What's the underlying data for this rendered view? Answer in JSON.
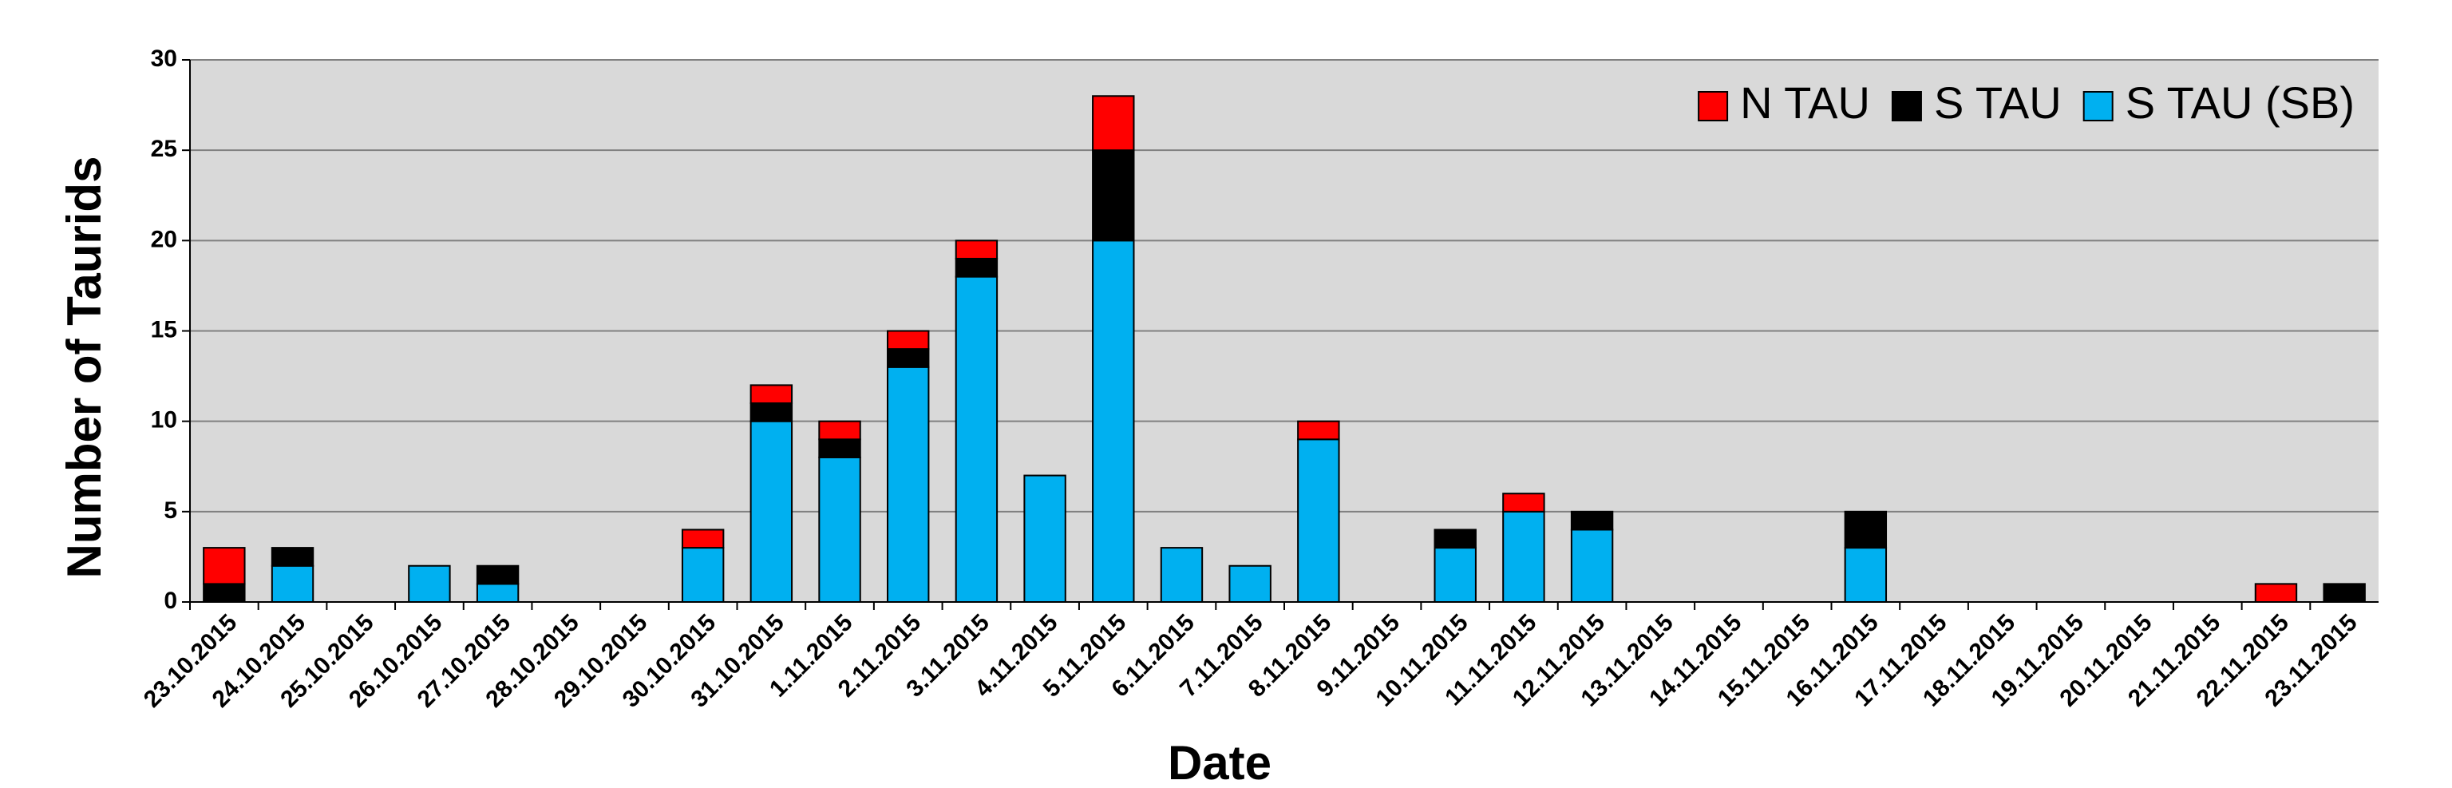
{
  "chart_data": {
    "type": "stacked_bar",
    "x_label": "Date",
    "y_label": "Number of Taurids",
    "categories": [
      "23.10.2015",
      "24.10.2015",
      "25.10.2015",
      "26.10.2015",
      "27.10.2015",
      "28.10.2015",
      "29.10.2015",
      "30.10.2015",
      "31.10.2015",
      "1.11.2015",
      "2.11.2015",
      "3.11.2015",
      "4.11.2015",
      "5.11.2015",
      "6.11.2015",
      "7.11.2015",
      "8.11.2015",
      "9.11.2015",
      "10.11.2015",
      "11.11.2015",
      "12.11.2015",
      "13.11.2015",
      "14.11.2015",
      "15.11.2015",
      "16.11.2015",
      "17.11.2015",
      "18.11.2015",
      "19.11.2015",
      "20.11.2015",
      "21.11.2015",
      "22.11.2015",
      "23.11.2015"
    ],
    "series": [
      {
        "name": "N TAU",
        "color": "#ff0000",
        "values": [
          2,
          0,
          0,
          0,
          0,
          0,
          0,
          1,
          1,
          1,
          1,
          1,
          0,
          3,
          0,
          0,
          1,
          0,
          0,
          1,
          0,
          0,
          0,
          0,
          0,
          0,
          0,
          0,
          0,
          0,
          1,
          0
        ]
      },
      {
        "name": "S TAU",
        "color": "#000000",
        "values": [
          1,
          1,
          0,
          0,
          1,
          0,
          0,
          0,
          1,
          1,
          1,
          1,
          0,
          5,
          0,
          0,
          0,
          0,
          1,
          0,
          1,
          0,
          0,
          0,
          2,
          0,
          0,
          0,
          0,
          0,
          0,
          1
        ]
      },
      {
        "name": "S TAU (SB)",
        "color": "#00b0f0",
        "values": [
          0,
          2,
          0,
          2,
          1,
          0,
          0,
          3,
          10,
          8,
          13,
          18,
          7,
          20,
          3,
          2,
          9,
          0,
          3,
          5,
          4,
          0,
          0,
          0,
          3,
          0,
          0,
          0,
          0,
          0,
          0,
          0
        ]
      }
    ],
    "ylim": [
      0,
      30
    ],
    "yticks": [
      0,
      5,
      10,
      15,
      20,
      25,
      30
    ],
    "grid": true,
    "legend": "top-right"
  }
}
